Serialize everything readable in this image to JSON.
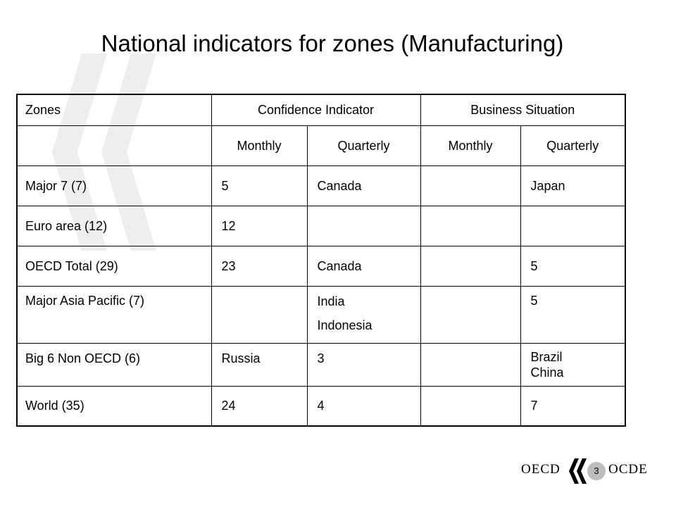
{
  "title": "National indicators for zones (Manufacturing)",
  "table": {
    "headers": {
      "zones": "Zones",
      "confidence": "Confidence Indicator",
      "business": "Business Situation"
    },
    "subheaders": [
      "Monthly",
      "Quarterly",
      "Monthly",
      "Quarterly"
    ],
    "rows": [
      {
        "zone": "Major 7 (7)",
        "ci_monthly": "5",
        "ci_quarterly": [
          "Canada"
        ],
        "bs_monthly": "",
        "bs_quarterly": [
          "Japan"
        ]
      },
      {
        "zone": "Euro area (12)",
        "ci_monthly": "12",
        "ci_quarterly": [
          ""
        ],
        "bs_monthly": "",
        "bs_quarterly": [
          ""
        ]
      },
      {
        "zone": "OECD Total (29)",
        "ci_monthly": "23",
        "ci_quarterly": [
          "Canada"
        ],
        "bs_monthly": "",
        "bs_quarterly": [
          "5"
        ]
      },
      {
        "zone": "Major Asia Pacific (7)",
        "ci_monthly": "",
        "ci_quarterly": [
          "India",
          "Indonesia"
        ],
        "bs_monthly": "",
        "bs_quarterly": [
          "5"
        ]
      },
      {
        "zone": "Big 6 Non OECD (6)",
        "ci_monthly": "Russia",
        "ci_quarterly": [
          "3"
        ],
        "bs_monthly": "",
        "bs_quarterly": [
          "Brazil",
          "China"
        ]
      },
      {
        "zone": "World (35)",
        "ci_monthly": "24",
        "ci_quarterly": [
          "4"
        ],
        "bs_monthly": "",
        "bs_quarterly": [
          "7"
        ]
      }
    ]
  },
  "footer": {
    "logo_left": "OECD",
    "logo_right": "OCDE",
    "page_number": "3"
  },
  "colors": {
    "watermark": "#eeeeee",
    "badge": "#bdbdbd",
    "text": "#000000"
  }
}
